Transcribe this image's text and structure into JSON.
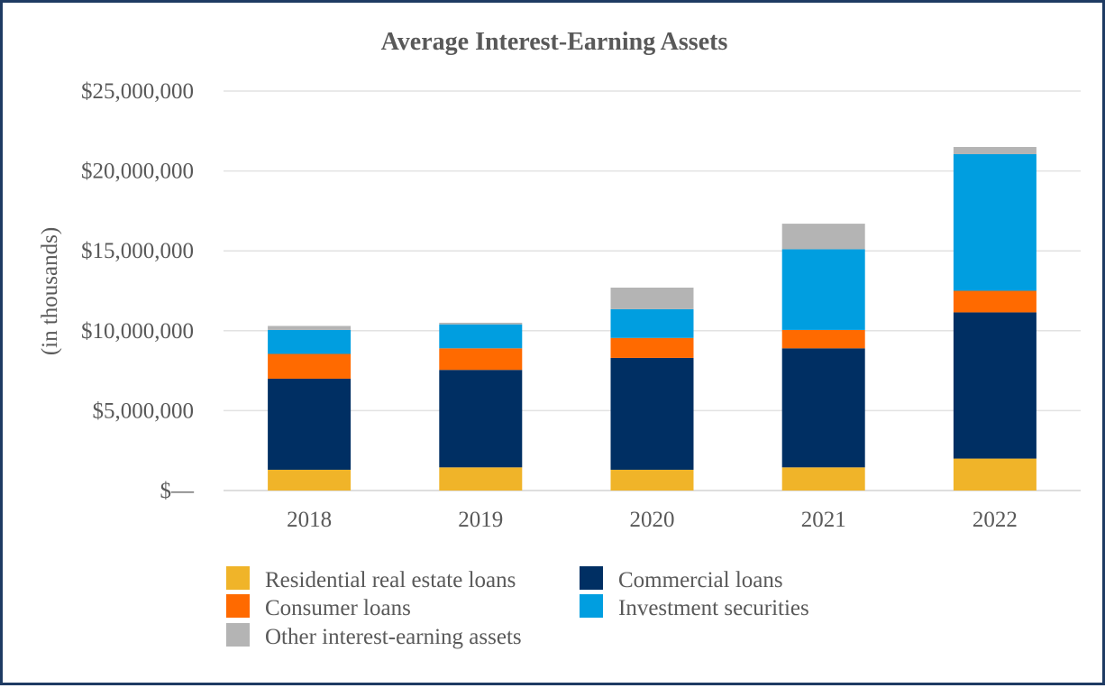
{
  "chart_data": {
    "type": "bar",
    "stacked": true,
    "title": "Average Interest-Earning Assets",
    "xlabel": "",
    "ylabel": "(in thousands)",
    "ylim": [
      0,
      25000000
    ],
    "y_ticks": [
      {
        "value": 0,
        "label": "$—"
      },
      {
        "value": 5000000,
        "label": "$5,000,000"
      },
      {
        "value": 10000000,
        "label": "$10,000,000"
      },
      {
        "value": 15000000,
        "label": "$15,000,000"
      },
      {
        "value": 20000000,
        "label": "$20,000,000"
      },
      {
        "value": 25000000,
        "label": "$25,000,000"
      }
    ],
    "grid": true,
    "legend_position": "bottom",
    "categories": [
      "2018",
      "2019",
      "2020",
      "2021",
      "2022"
    ],
    "series": [
      {
        "name": "Residential real estate loans",
        "color": "#f0b429",
        "values": [
          1300000,
          1450000,
          1300000,
          1450000,
          2000000
        ]
      },
      {
        "name": "Commercial loans",
        "color": "#002f63",
        "values": [
          5700000,
          6100000,
          7000000,
          7450000,
          9150000
        ]
      },
      {
        "name": "Consumer loans",
        "color": "#ff6a00",
        "values": [
          1550000,
          1350000,
          1250000,
          1150000,
          1350000
        ]
      },
      {
        "name": "Investment securities",
        "color": "#009ee0",
        "values": [
          1500000,
          1500000,
          1800000,
          5050000,
          8550000
        ]
      },
      {
        "name": "Other interest-earning assets",
        "color": "#b4b4b4",
        "values": [
          250000,
          100000,
          1350000,
          1600000,
          450000
        ]
      }
    ]
  }
}
